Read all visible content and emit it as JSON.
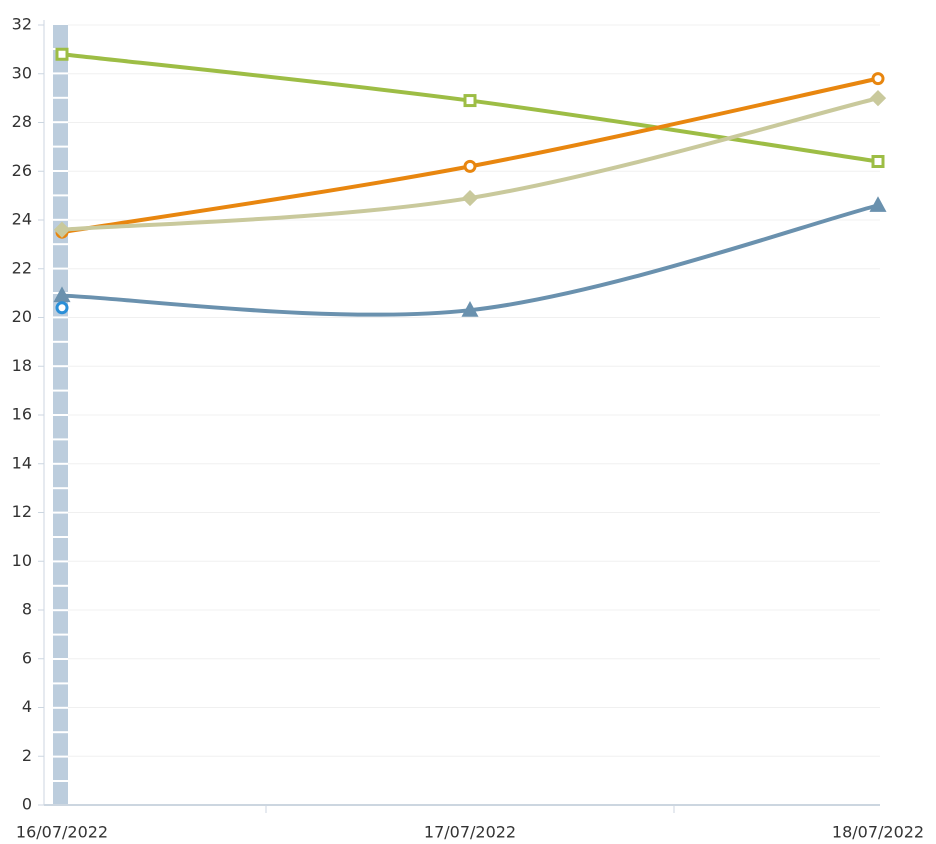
{
  "chart_data": {
    "type": "line",
    "categories": [
      "16/07/2022",
      "17/07/2022",
      "18/07/2022"
    ],
    "series": [
      {
        "color": "#9dbd45",
        "marker": "square",
        "values": [
          30.8,
          28.9,
          26.4
        ]
      },
      {
        "color": "#e8860f",
        "marker": "circle",
        "values": [
          23.5,
          26.2,
          29.8
        ]
      },
      {
        "color": "#c9c99c",
        "marker": "diamond",
        "values": [
          23.6,
          24.9,
          29.0
        ]
      },
      {
        "color": "#6a91ae",
        "marker": "triangle",
        "values": [
          20.9,
          20.3,
          24.6
        ]
      },
      {
        "color": "#2a8fd8",
        "marker": "circle",
        "values": [
          20.4,
          null,
          null
        ]
      }
    ],
    "ylim": [
      0,
      32
    ],
    "yticks": [
      0,
      2,
      4,
      6,
      8,
      10,
      12,
      14,
      16,
      18,
      20,
      22,
      24,
      26,
      28,
      30,
      32
    ],
    "grid": true,
    "smooth": true
  }
}
